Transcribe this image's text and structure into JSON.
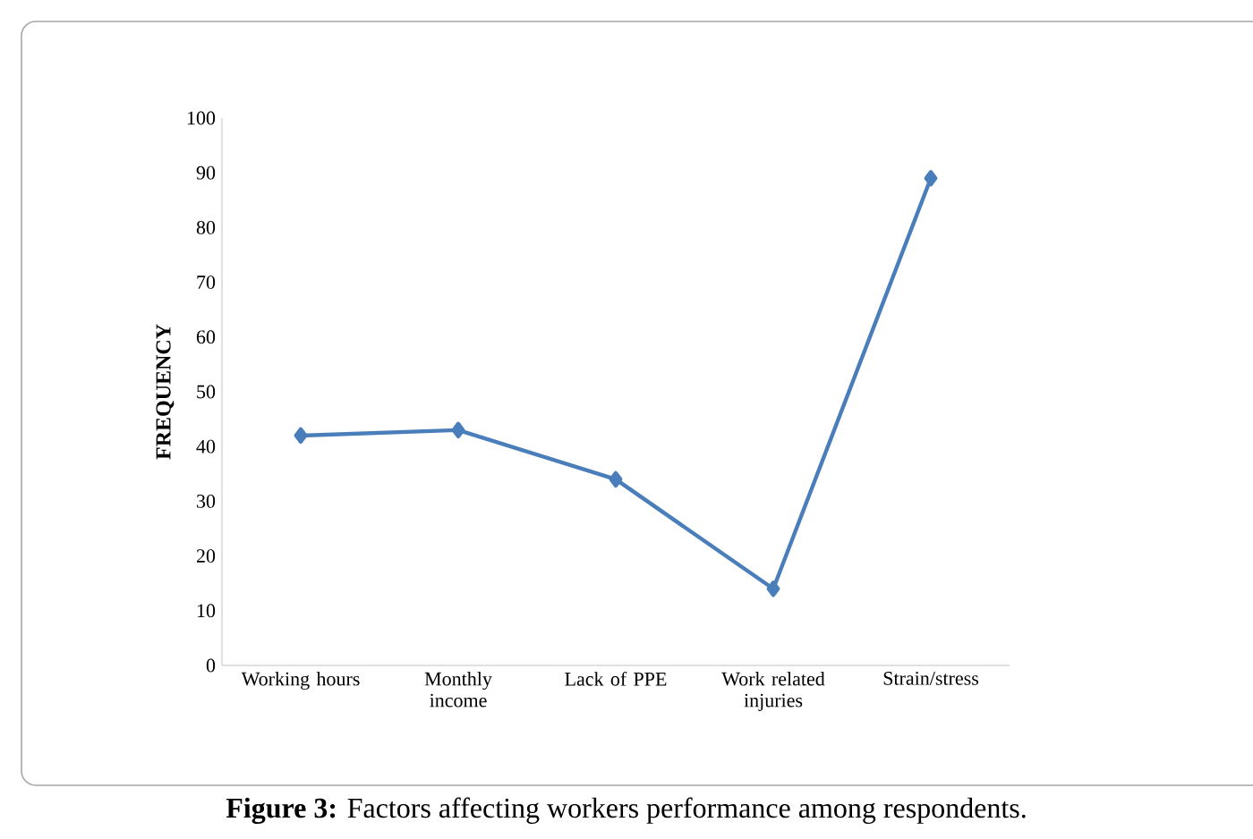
{
  "chart_data": {
    "type": "line",
    "ylabel": "FREQUENCY",
    "categories": [
      "Working hours",
      "Monthly income",
      "Lack of PPE",
      "Work related injuries",
      "Strain/stress"
    ],
    "series": [
      {
        "color": "#4a7ebb",
        "values": [
          42,
          43,
          34,
          14,
          89
        ]
      }
    ],
    "ylim": [
      0,
      100
    ],
    "yticks": [
      0,
      10,
      20,
      30,
      40,
      50,
      60,
      70,
      80,
      90,
      100
    ],
    "grid": false,
    "marker": "diamond",
    "line_style": "solid",
    "annotations": [
      "**Figure 3:** Factors affecting workers performance among respondents."
    ]
  }
}
